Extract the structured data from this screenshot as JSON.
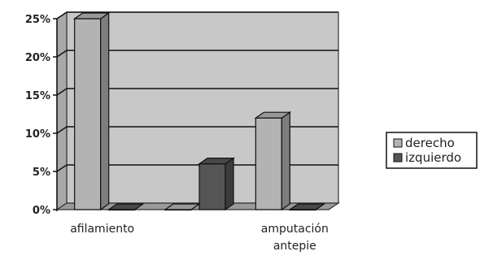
{
  "chart_data": {
    "type": "bar",
    "categories": [
      "afilamiento",
      "",
      "amputación antepie"
    ],
    "category_label_lines": [
      [
        "afilamiento"
      ],
      [],
      [
        "amputación",
        "antepie"
      ]
    ],
    "series": [
      {
        "name": "derecho",
        "values": [
          25,
          0,
          12
        ],
        "color": "#b3b3b3"
      },
      {
        "name": "izquierdo",
        "values": [
          0,
          6,
          0
        ],
        "color": "#555555"
      }
    ],
    "ylim": [
      0,
      25
    ],
    "yticks": [
      0,
      5,
      10,
      15,
      20,
      25
    ],
    "ytick_suffix": "%",
    "title": "",
    "xlabel": "",
    "ylabel": "",
    "grid": true,
    "legend_position": "right",
    "three_d": true,
    "colors": {
      "wall": "#c8c8c8",
      "floor": "#9a9a9a",
      "gridline": "#111111"
    }
  }
}
